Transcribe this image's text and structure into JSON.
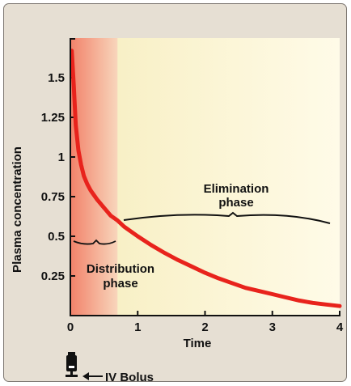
{
  "chart_data": {
    "type": "line",
    "xlabel": "Time",
    "ylabel": "Plasma concentration",
    "xlim": [
      0,
      4
    ],
    "ylim": [
      0,
      1.75
    ],
    "x_ticks": [
      "0",
      "1",
      "2",
      "3",
      "4"
    ],
    "y_ticks": [
      "0.25",
      "0.5",
      "0.75",
      "1",
      "1.25",
      "1.5"
    ],
    "series": [
      {
        "x": [
          0.02,
          0.05,
          0.08,
          0.12,
          0.16,
          0.2,
          0.25,
          0.3,
          0.35,
          0.4,
          0.5,
          0.6,
          0.7,
          0.8,
          1.0,
          1.2,
          1.4,
          1.6,
          1.8,
          2.0,
          2.2,
          2.4,
          2.6,
          2.8,
          3.0,
          3.2,
          3.4,
          3.6,
          3.8,
          4.0
        ],
        "y": [
          1.67,
          1.45,
          1.2,
          1.04,
          0.95,
          0.88,
          0.83,
          0.79,
          0.76,
          0.73,
          0.68,
          0.63,
          0.6,
          0.56,
          0.5,
          0.445,
          0.395,
          0.35,
          0.31,
          0.27,
          0.235,
          0.205,
          0.175,
          0.155,
          0.135,
          0.115,
          0.095,
          0.08,
          0.07,
          0.06
        ],
        "color": "#e8231c"
      }
    ],
    "annotations": {
      "elimination": [
        "Elimination",
        "phase"
      ],
      "distribution": [
        "Distribution",
        "phase"
      ],
      "bolus": "IV Bolus"
    },
    "colors": {
      "background": "#e6dfd3",
      "distribution_band_start": "#f2826a",
      "distribution_band_end": "#f8d7bd",
      "elimination_band_start": "#f8f0c6",
      "elimination_band_end": "#fffbe8",
      "curve": "#e8231c"
    }
  }
}
